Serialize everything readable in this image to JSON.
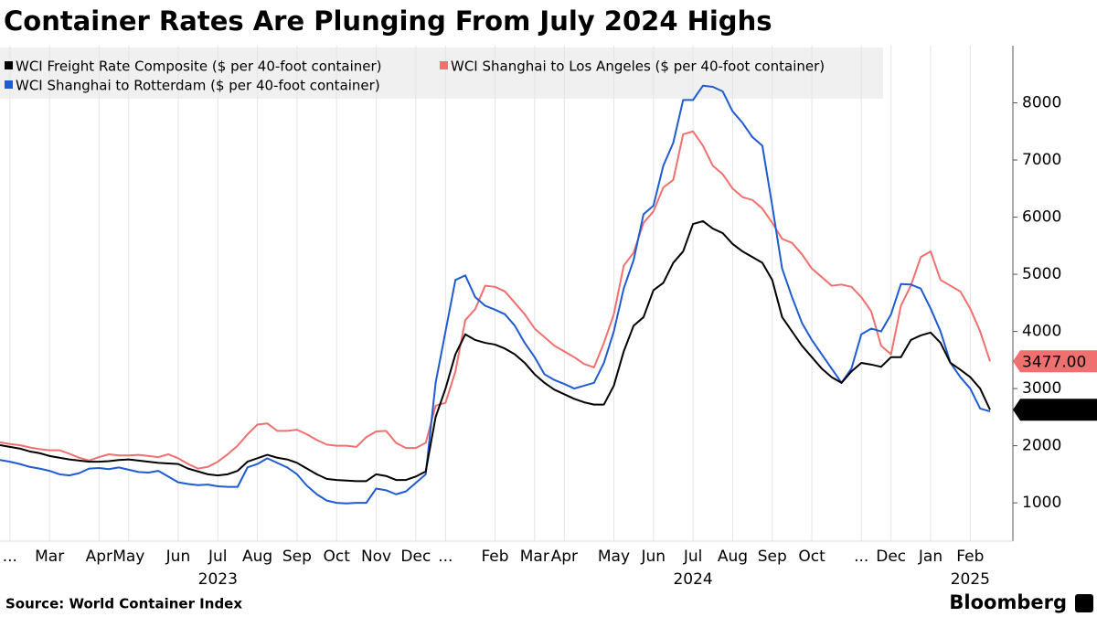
{
  "chart_data": {
    "type": "line",
    "title": "Container Rates Are Plunging From July 2024 Highs",
    "source": "Source: World Container Index",
    "brand": "Bloomberg",
    "categories": [
      null,
      "...",
      null,
      null,
      null,
      "Mar",
      null,
      null,
      null,
      null,
      "Apr",
      null,
      null,
      "May",
      null,
      null,
      null,
      null,
      "Jun",
      null,
      null,
      null,
      "Jul",
      null,
      null,
      null,
      "Aug",
      null,
      null,
      null,
      "Sep",
      null,
      null,
      null,
      "Oct",
      null,
      null,
      null,
      "Nov",
      null,
      null,
      null,
      "Dec",
      null,
      null,
      "...",
      null,
      null,
      null,
      null,
      "Feb",
      null,
      null,
      null,
      "Mar",
      null,
      null,
      "Apr",
      null,
      null,
      null,
      null,
      "May",
      null,
      null,
      null,
      "Jun",
      null,
      null,
      null,
      "Jul",
      null,
      null,
      null,
      "Aug",
      null,
      null,
      null,
      "Sep",
      null,
      null,
      null,
      "Oct",
      null,
      null,
      null,
      null,
      "...",
      null,
      null,
      "Dec",
      null,
      null,
      null,
      "Jan",
      null,
      null,
      null,
      "Feb",
      null,
      null
    ],
    "year_categories": [
      null,
      null,
      null,
      null,
      null,
      null,
      null,
      null,
      null,
      null,
      null,
      null,
      null,
      null,
      null,
      null,
      null,
      null,
      null,
      null,
      null,
      null,
      "2023",
      null,
      null,
      null,
      null,
      null,
      null,
      null,
      null,
      null,
      null,
      null,
      null,
      null,
      null,
      null,
      null,
      null,
      null,
      null,
      null,
      null,
      null,
      null,
      null,
      null,
      null,
      null,
      null,
      null,
      null,
      null,
      null,
      null,
      null,
      null,
      null,
      null,
      null,
      null,
      null,
      null,
      null,
      null,
      null,
      null,
      null,
      null,
      "2024",
      null,
      null,
      null,
      null,
      null,
      null,
      null,
      null,
      null,
      null,
      null,
      null,
      null,
      null,
      null,
      null,
      null,
      null,
      null,
      null,
      null,
      null,
      null,
      null,
      null,
      null,
      null,
      "2025",
      null,
      null
    ],
    "series": [
      {
        "name": "WCI Freight Rate Composite ($ per 40-foot container)",
        "color": "#000000",
        "values": [
          2010,
          1980,
          1950,
          1900,
          1870,
          1820,
          1790,
          1760,
          1740,
          1720,
          1720,
          1730,
          1750,
          1760,
          1740,
          1720,
          1700,
          1690,
          1680,
          1600,
          1550,
          1500,
          1480,
          1500,
          1560,
          1720,
          1780,
          1840,
          1790,
          1760,
          1700,
          1600,
          1500,
          1420,
          1400,
          1390,
          1380,
          1380,
          1500,
          1470,
          1400,
          1400,
          1460,
          1550,
          2500,
          3000,
          3600,
          3950,
          3850,
          3800,
          3770,
          3700,
          3600,
          3450,
          3250,
          3100,
          2980,
          2900,
          2820,
          2760,
          2720,
          2720,
          3050,
          3650,
          4100,
          4250,
          4720,
          4850,
          5200,
          5400,
          5880,
          5930,
          5800,
          5720,
          5530,
          5400,
          5300,
          5200,
          4900,
          4250,
          4000,
          3750,
          3550,
          3350,
          3200,
          3100,
          3300,
          3450,
          3420,
          3380,
          3550,
          3550,
          3850,
          3930,
          3980,
          3800,
          3450,
          3330,
          3200,
          3000,
          2629.32
        ],
        "value_labels": [
          null,
          null,
          null,
          null,
          null,
          null,
          null,
          null,
          null,
          null,
          null,
          null,
          null,
          null,
          null,
          null,
          null,
          null,
          null,
          null,
          null,
          null,
          null,
          null,
          null,
          null,
          null,
          null,
          null,
          null,
          null,
          null,
          null,
          null,
          null,
          null,
          null,
          null,
          null,
          null,
          null,
          null,
          null,
          null,
          null,
          null,
          null,
          null,
          null,
          null,
          null,
          null,
          null,
          null,
          null,
          null,
          null,
          null,
          null,
          null,
          null,
          null,
          null,
          null,
          null,
          null,
          null,
          null,
          null,
          null,
          null,
          null,
          null,
          null,
          null,
          null,
          null,
          null,
          null,
          null,
          null,
          null,
          null,
          null,
          null,
          null,
          null,
          null,
          null,
          null,
          null,
          null,
          null,
          null,
          null,
          null,
          null,
          null,
          null,
          null,
          "2629.32"
        ]
      },
      {
        "name": "WCI Shanghai to Los Angeles ($ per 40-foot container)",
        "color": "#f07070",
        "values": [
          2060,
          2030,
          2010,
          1970,
          1940,
          1920,
          1920,
          1860,
          1790,
          1740,
          1800,
          1850,
          1830,
          1830,
          1840,
          1820,
          1800,
          1850,
          1780,
          1680,
          1600,
          1630,
          1720,
          1850,
          2000,
          2200,
          2370,
          2390,
          2260,
          2260,
          2280,
          2200,
          2100,
          2020,
          2000,
          2000,
          1980,
          2150,
          2250,
          2260,
          2050,
          1960,
          1960,
          2050,
          2700,
          2750,
          3300,
          4200,
          4390,
          4800,
          4780,
          4700,
          4500,
          4300,
          4050,
          3900,
          3750,
          3650,
          3550,
          3430,
          3370,
          3800,
          4300,
          5150,
          5380,
          5900,
          6100,
          6520,
          6650,
          7450,
          7500,
          7250,
          6900,
          6750,
          6500,
          6350,
          6300,
          6150,
          5900,
          5620,
          5550,
          5350,
          5100,
          4950,
          4800,
          4820,
          4780,
          4600,
          4350,
          3750,
          3600,
          4450,
          4800,
          5300,
          5400,
          4900,
          4800,
          4700,
          4400,
          4000,
          3477
        ],
        "value_labels": [
          null,
          null,
          null,
          null,
          null,
          null,
          null,
          null,
          null,
          null,
          null,
          null,
          null,
          null,
          null,
          null,
          null,
          null,
          null,
          null,
          null,
          null,
          null,
          null,
          null,
          null,
          null,
          null,
          null,
          null,
          null,
          null,
          null,
          null,
          null,
          null,
          null,
          null,
          null,
          null,
          null,
          null,
          null,
          null,
          null,
          null,
          null,
          null,
          null,
          null,
          null,
          null,
          null,
          null,
          null,
          null,
          null,
          null,
          null,
          null,
          null,
          null,
          null,
          null,
          null,
          null,
          null,
          null,
          null,
          null,
          null,
          null,
          null,
          null,
          null,
          null,
          null,
          null,
          null,
          null,
          null,
          null,
          null,
          null,
          null,
          null,
          null,
          null,
          null,
          null,
          null,
          null,
          null,
          null,
          null,
          null,
          null,
          null,
          null,
          null,
          "3477.00"
        ]
      },
      {
        "name": "WCI Shanghai to Rotterdam ($ per 40-foot container)",
        "color": "#1f5bd1",
        "values": [
          1750,
          1720,
          1680,
          1630,
          1600,
          1560,
          1500,
          1480,
          1520,
          1600,
          1610,
          1590,
          1620,
          1580,
          1540,
          1530,
          1560,
          1460,
          1360,
          1330,
          1310,
          1320,
          1290,
          1280,
          1280,
          1620,
          1680,
          1780,
          1700,
          1620,
          1500,
          1300,
          1150,
          1040,
          1000,
          990,
          1000,
          1000,
          1250,
          1220,
          1150,
          1200,
          1350,
          1500,
          3100,
          4000,
          4900,
          4980,
          4600,
          4450,
          4380,
          4300,
          4100,
          3800,
          3550,
          3250,
          3150,
          3080,
          3000,
          3050,
          3100,
          3450,
          4000,
          4750,
          5250,
          6050,
          6200,
          6900,
          7300,
          8050,
          8050,
          8300,
          8280,
          8200,
          7850,
          7650,
          7400,
          7250,
          6200,
          5100,
          4600,
          4150,
          3850,
          3600,
          3350,
          3100,
          3350,
          3950,
          4050,
          4000,
          4300,
          4830,
          4820,
          4750,
          4400,
          4000,
          3450,
          3200,
          3000,
          2650,
          2600
        ]
      }
    ],
    "ylim": [
      330,
      9000
    ],
    "yticks": [
      1000,
      2000,
      3000,
      4000,
      5000,
      6000,
      7000,
      8000
    ],
    "grid": "x"
  }
}
